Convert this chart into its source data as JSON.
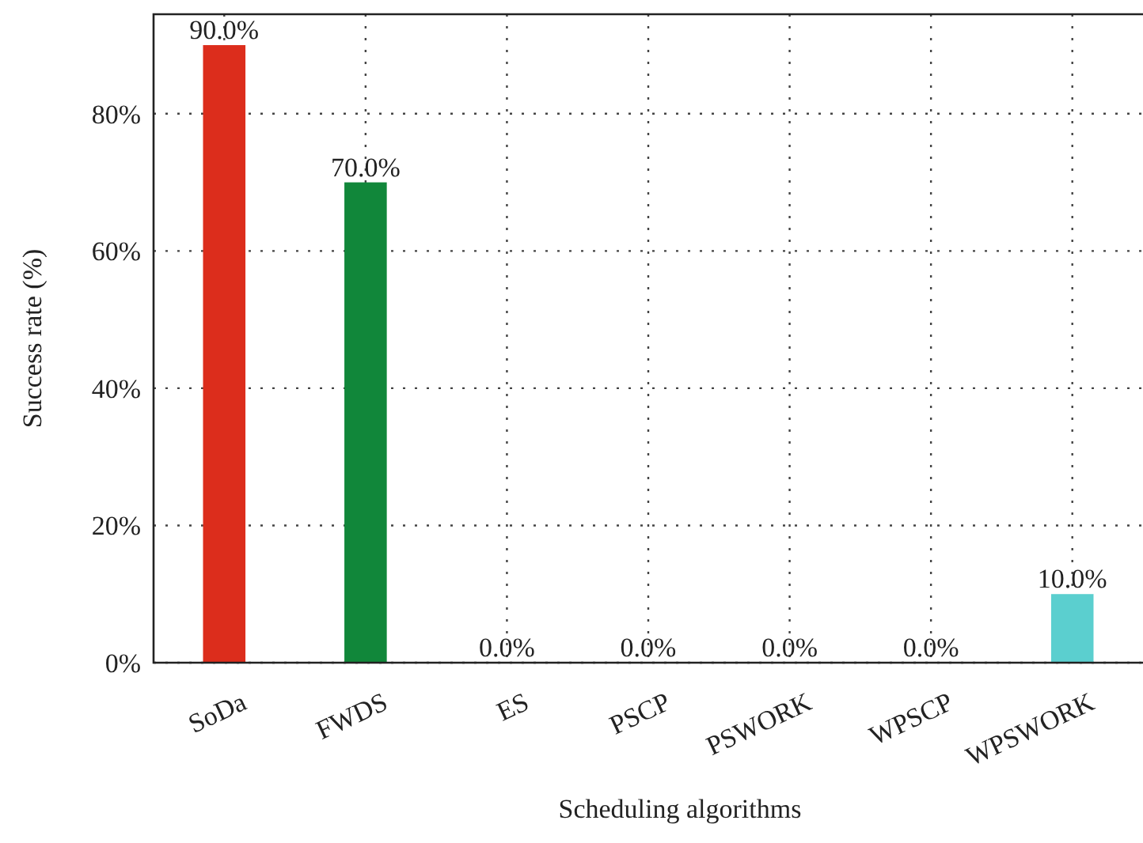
{
  "chart_data": {
    "type": "bar",
    "xlabel": "Scheduling algorithms",
    "ylabel": "Success rate (%)",
    "categories": [
      "SoDa",
      "FWDS",
      "ES",
      "PSCP",
      "PSWORK",
      "WPSCP",
      "WPSWORK"
    ],
    "values": [
      90,
      70,
      0,
      0,
      0,
      0,
      10
    ],
    "colors": [
      "#dc2d1c",
      "#11873a",
      "#3a5fcd",
      "#e08a1e",
      "#8a4fbf",
      "#7a7a7a",
      "#5bcfcf"
    ],
    "value_labels": [
      "90.0%",
      "70.0%",
      "0.0%",
      "0.0%",
      "0.0%",
      "0.0%",
      "10.0%"
    ],
    "ylim": [
      0,
      94.5
    ],
    "yticks": [
      {
        "value": 0,
        "label": "0%"
      },
      {
        "value": 20,
        "label": "20%"
      },
      {
        "value": 40,
        "label": "40%"
      },
      {
        "value": 60,
        "label": "60%"
      },
      {
        "value": 80,
        "label": "80%"
      }
    ],
    "grid": true
  }
}
